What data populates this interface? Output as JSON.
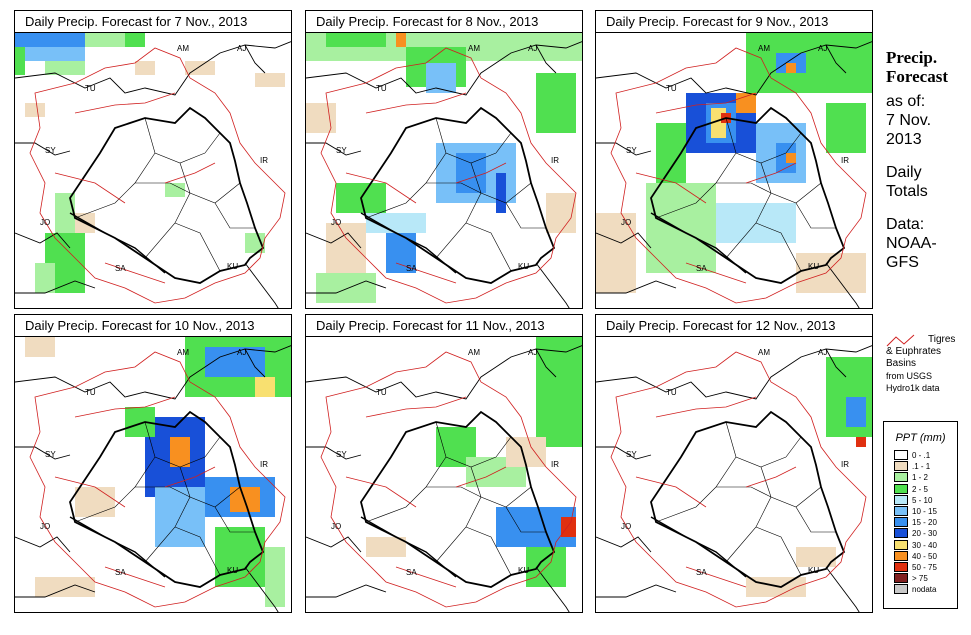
{
  "panels": [
    {
      "title": "Daily Precip. Forecast for  7 Nov., 2013"
    },
    {
      "title": "Daily Precip. Forecast for  8 Nov., 2013"
    },
    {
      "title": "Daily Precip. Forecast for  9 Nov., 2013"
    },
    {
      "title": "Daily Precip. Forecast for  10 Nov., 2013"
    },
    {
      "title": "Daily Precip. Forecast for  11 Nov., 2013"
    },
    {
      "title": "Daily Precip. Forecast for  12 Nov., 2013"
    }
  ],
  "country_labels": {
    "am": "AM",
    "aj": "AJ",
    "tu": "TU",
    "sy": "SY",
    "ir": "IR",
    "jo": "JO",
    "sa": "SA",
    "ku": "KU"
  },
  "sidebar": {
    "title_line1": "Precip.",
    "title_line2": "Forecast",
    "asof_line1": "as of:",
    "asof_line2": "7 Nov.",
    "asof_line3": "2013",
    "daily_line1": "Daily",
    "daily_line2": "Totals",
    "data_line1": "Data:",
    "data_line2": "NOAA-",
    "data_line3": "GFS"
  },
  "basin_legend": {
    "line1": "Tigres",
    "line2": "& Euphrates",
    "line3": "Basins",
    "line4": "from USGS",
    "line5": "Hydro1k data"
  },
  "legend": {
    "title": "PPT (mm)",
    "items": [
      {
        "label": "0 - .1",
        "color": "#ffffff"
      },
      {
        "label": ".1 - 1",
        "color": "#f0dcc0"
      },
      {
        "label": "1 - 2",
        "color": "#a8f0a0"
      },
      {
        "label": "2 - 5",
        "color": "#50e050"
      },
      {
        "label": "5 - 10",
        "color": "#b8e8f8"
      },
      {
        "label": "10 - 15",
        "color": "#78c0f8"
      },
      {
        "label": "15 - 20",
        "color": "#3890f0"
      },
      {
        "label": "20 - 30",
        "color": "#1850d8"
      },
      {
        "label": "30 - 40",
        "color": "#f8e070"
      },
      {
        "label": "40 - 50",
        "color": "#f89020"
      },
      {
        "label": "50 - 75",
        "color": "#e03010"
      },
      {
        "label": "> 75",
        "color": "#802020"
      },
      {
        "label": "nodata",
        "color": "#c8c8c8"
      }
    ]
  }
}
